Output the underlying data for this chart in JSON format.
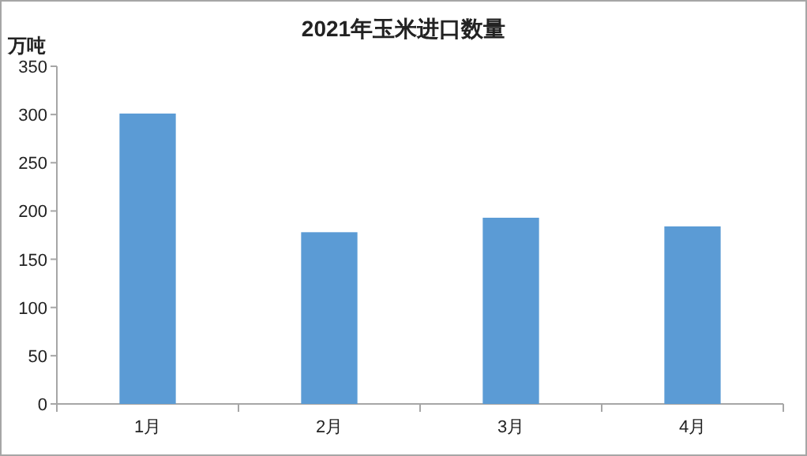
{
  "chart_data": {
    "type": "bar",
    "title": "2021年玉米进口数量",
    "ylabel": "万吨",
    "categories": [
      "1月",
      "2月",
      "3月",
      "4月"
    ],
    "values": [
      301,
      178,
      193,
      184
    ],
    "color": "#5b9bd5",
    "ylim": [
      0,
      350
    ],
    "yticks": [
      0,
      50,
      100,
      150,
      200,
      250,
      300,
      350
    ],
    "grid": false
  }
}
